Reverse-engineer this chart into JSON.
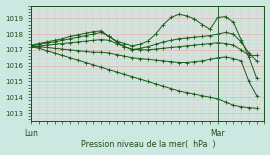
{
  "bg_color": "#cde8e0",
  "grid_color_major": "#f0a0a0",
  "grid_color_minor": "#f0c0c0",
  "line_color": "#1a5c1a",
  "vline_color": "#336633",
  "text_color": "#1a4d1a",
  "xlabel_label": "Pression niveau de la mer(  hPa  )",
  "day_labels": [
    "Lun",
    "Mar"
  ],
  "day_positions": [
    0,
    24
  ],
  "ylim": [
    1012.5,
    1019.8
  ],
  "yticks": [
    1013,
    1014,
    1015,
    1016,
    1017,
    1018,
    1019
  ],
  "xlim": [
    0,
    30
  ],
  "series": [
    [
      1017.3,
      1017.4,
      1017.5,
      1017.6,
      1017.7,
      1017.85,
      1017.95,
      1018.05,
      1018.15,
      1018.2,
      1017.85,
      1017.55,
      1017.4,
      1017.25,
      1017.35,
      1017.55,
      1018.0,
      1018.6,
      1019.05,
      1019.25,
      1019.15,
      1018.95,
      1018.6,
      1018.3,
      1019.05,
      1019.1,
      1018.75,
      1017.65,
      1016.55,
      1015.2
    ],
    [
      1017.25,
      1017.35,
      1017.45,
      1017.5,
      1017.6,
      1017.7,
      1017.8,
      1017.9,
      1018.0,
      1018.1,
      1017.85,
      1017.5,
      1017.2,
      1017.0,
      1017.1,
      1017.2,
      1017.35,
      1017.5,
      1017.6,
      1017.7,
      1017.75,
      1017.8,
      1017.85,
      1017.9,
      1018.0,
      1018.1,
      1018.0,
      1017.5,
      1016.8,
      1016.3
    ],
    [
      1017.2,
      1017.25,
      1017.3,
      1017.35,
      1017.4,
      1017.45,
      1017.5,
      1017.55,
      1017.6,
      1017.65,
      1017.6,
      1017.4,
      1017.2,
      1017.05,
      1017.0,
      1017.0,
      1017.05,
      1017.1,
      1017.15,
      1017.2,
      1017.25,
      1017.3,
      1017.35,
      1017.4,
      1017.45,
      1017.4,
      1017.3,
      1017.0,
      1016.65,
      1016.65
    ],
    [
      1017.2,
      1017.2,
      1017.15,
      1017.1,
      1017.05,
      1017.0,
      1016.95,
      1016.9,
      1016.85,
      1016.85,
      1016.8,
      1016.7,
      1016.6,
      1016.5,
      1016.45,
      1016.4,
      1016.35,
      1016.3,
      1016.25,
      1016.2,
      1016.2,
      1016.25,
      1016.3,
      1016.4,
      1016.5,
      1016.55,
      1016.45,
      1016.3,
      1015.0,
      1014.1
    ],
    [
      1017.2,
      1017.1,
      1016.95,
      1016.8,
      1016.65,
      1016.5,
      1016.35,
      1016.2,
      1016.05,
      1015.9,
      1015.75,
      1015.6,
      1015.45,
      1015.3,
      1015.15,
      1015.0,
      1014.85,
      1014.7,
      1014.55,
      1014.4,
      1014.3,
      1014.2,
      1014.1,
      1014.0,
      1013.9,
      1013.7,
      1013.5,
      1013.4,
      1013.35,
      1013.3
    ]
  ]
}
